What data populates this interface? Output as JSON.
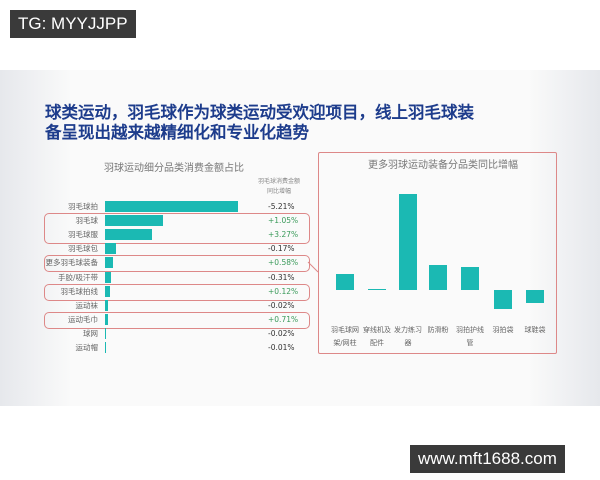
{
  "watermarks": {
    "top": "TG: MYYJJPP",
    "bottom": "www.mft1688.com"
  },
  "title_lines": [
    "球类运动，羽毛球作为球类运动受欢迎项目，线上羽毛球装",
    "备呈现出越来越精细化和专业化趋势"
  ],
  "chart_data": [
    {
      "type": "bar",
      "orientation": "horizontal",
      "title": "羽球运动细分品类消费金额占比",
      "column_header": [
        "羽毛球消费金额",
        "同比增幅"
      ],
      "categories": [
        "羽毛球拍",
        "羽毛球",
        "羽毛球服",
        "羽毛球包",
        "更多羽毛球装备",
        "手胶/吸汗带",
        "羽毛球拍线",
        "运动袜",
        "运动毛巾",
        "球网",
        "运动帽"
      ],
      "values": [
        133,
        58,
        47,
        11,
        8,
        6,
        5,
        3,
        3,
        1,
        0.5
      ],
      "growth": [
        "-5.21%",
        "+1.05%",
        "+3.27%",
        "-0.17%",
        "+0.58%",
        "-0.31%",
        "+0.12%",
        "-0.02%",
        "+0.71%",
        "-0.02%",
        "-0.01%"
      ],
      "highlighted": [
        [
          1,
          2
        ],
        [
          4
        ],
        [
          6
        ],
        [
          8
        ]
      ],
      "colors": {
        "bar": "#1bb9b3",
        "positive": "#3a9a5a",
        "highlight": "#dd8888"
      }
    },
    {
      "type": "bar",
      "title": "更多羽球运动装备分品类同比增幅",
      "categories": [
        [
          "羽毛球网",
          "架/网柱"
        ],
        [
          "穿线机及",
          "配件"
        ],
        [
          "发力练习",
          "器"
        ],
        [
          "防滑粉"
        ],
        [
          "羽拍护线",
          "管"
        ],
        [
          "羽拍袋"
        ],
        [
          "球鞋袋"
        ]
      ],
      "values": [
        16,
        1,
        96,
        25,
        23,
        -19,
        -13
      ],
      "colors": {
        "bar": "#1bb9b3",
        "border": "#dd8888"
      }
    }
  ]
}
